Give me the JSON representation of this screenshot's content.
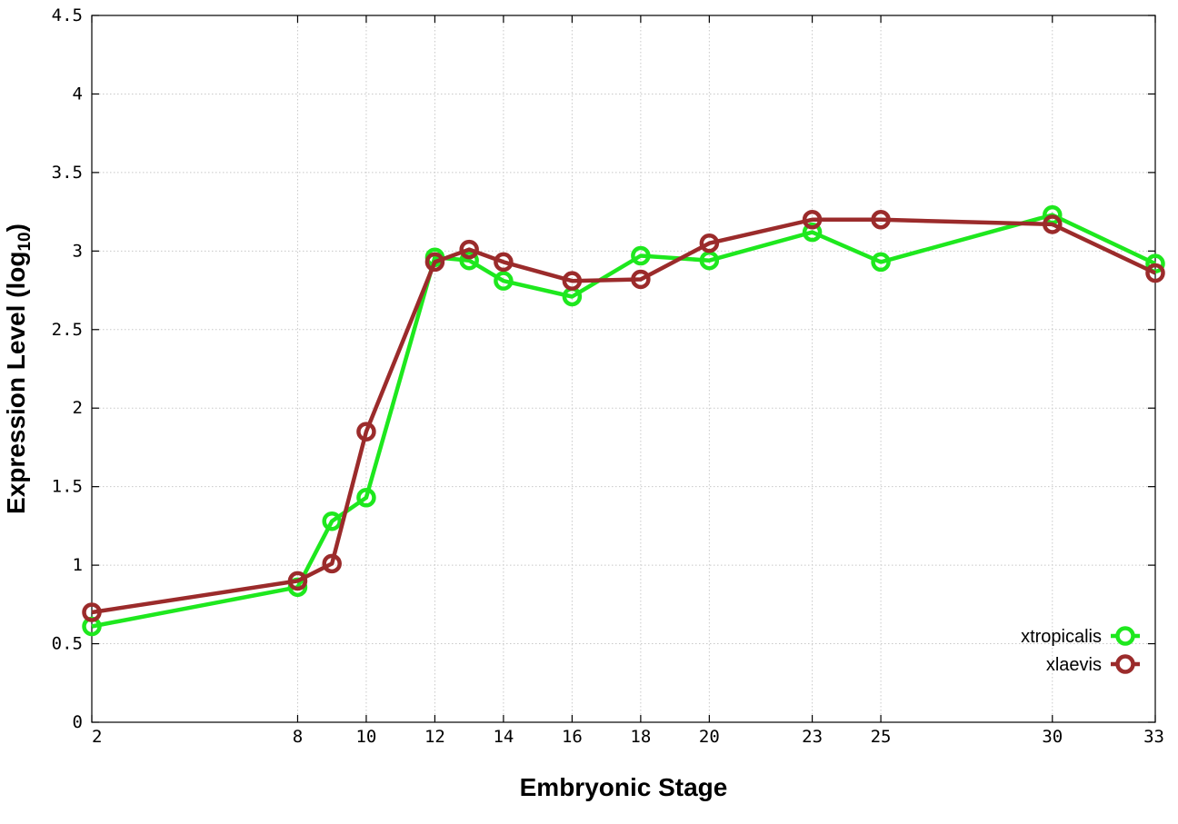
{
  "chart_data": {
    "type": "line",
    "xlabel": "Embryonic Stage",
    "ylabel_main": "Expression Level (log",
    "ylabel_sub": "10",
    "ylabel_close": ")",
    "ylim": [
      0,
      4.5
    ],
    "yticks": [
      0,
      0.5,
      1,
      1.5,
      2,
      2.5,
      3,
      3.5,
      4,
      4.5
    ],
    "ytick_labels": [
      "0",
      "0.5",
      "1",
      "1.5",
      "2",
      "2.5",
      "3",
      "3.5",
      "4",
      "4.5"
    ],
    "xticks": [
      2,
      8,
      10,
      12,
      14,
      16,
      18,
      20,
      23,
      25,
      30,
      33
    ],
    "xtick_labels": [
      "2",
      "8",
      "10",
      "12",
      "14",
      "16",
      "18",
      "20",
      "23",
      "25",
      "30",
      "33"
    ],
    "grid": true,
    "legend_position": "bottom-right",
    "series": [
      {
        "name": "xtropicalis",
        "color": "#1ee81e",
        "x": [
          2,
          8,
          9,
          10,
          12,
          13,
          14,
          16,
          18,
          20,
          23,
          25,
          30,
          33
        ],
        "values": [
          0.61,
          0.86,
          1.28,
          1.43,
          2.96,
          2.94,
          2.81,
          2.71,
          2.97,
          2.94,
          3.12,
          2.93,
          3.23,
          2.92
        ]
      },
      {
        "name": "xlaevis",
        "color": "#9b2b2b",
        "x": [
          2,
          8,
          9,
          10,
          12,
          13,
          14,
          16,
          18,
          20,
          23,
          25,
          30,
          33
        ],
        "values": [
          0.7,
          0.9,
          1.01,
          1.85,
          2.93,
          3.01,
          2.93,
          2.81,
          2.82,
          3.05,
          3.2,
          3.2,
          3.17,
          2.86
        ]
      }
    ]
  }
}
